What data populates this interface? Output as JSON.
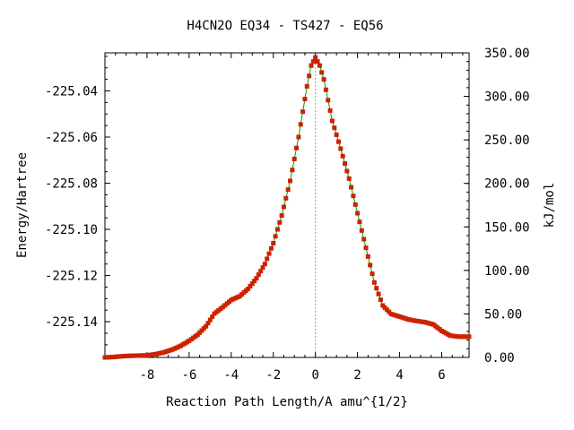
{
  "chart_data": {
    "type": "line",
    "title": "H4CN2O   EQ34 - TS427 - EQ56",
    "xlabel": "Reaction Path Length/A amu^{1/2}",
    "ylabel": "Energy/Hartree",
    "y2label": "kJ/mol",
    "xlim": [
      -10.0,
      7.3
    ],
    "ylim": [
      -225.1555,
      -225.0235
    ],
    "y2lim": [
      0,
      350
    ],
    "x_ticks": [
      "-8",
      "-6",
      "-4",
      "-2",
      "0",
      "2",
      "4",
      "6"
    ],
    "y_ticks": [
      "-225.04",
      "-225.06",
      "-225.08",
      "-225.10",
      "-225.12",
      "-225.14"
    ],
    "y2_ticks": [
      "350.00",
      "300.00",
      "250.00",
      "200.00",
      "150.00",
      "100.00",
      "50.00",
      "0.00"
    ],
    "grid": false,
    "ts_marker_x": 0,
    "colors": {
      "line": "#00a000",
      "marker": "#cc2200",
      "ts_line": "#999999"
    },
    "series": [
      {
        "points": [
          [
            -10.0,
            -225.1555
          ],
          [
            -9.6,
            -225.1553
          ],
          [
            -9.2,
            -225.155
          ],
          [
            -8.8,
            -225.1548
          ],
          [
            -8.4,
            -225.1547
          ],
          [
            -8.0,
            -225.1546
          ],
          [
            -7.6,
            -225.1541
          ],
          [
            -7.2,
            -225.1533
          ],
          [
            -6.8,
            -225.1521
          ],
          [
            -6.4,
            -225.1505
          ],
          [
            -6.0,
            -225.1483
          ],
          [
            -5.6,
            -225.1457
          ],
          [
            -5.2,
            -225.142
          ],
          [
            -4.8,
            -225.1365
          ],
          [
            -4.4,
            -225.1337
          ],
          [
            -4.0,
            -225.1306
          ],
          [
            -3.6,
            -225.129
          ],
          [
            -3.2,
            -225.1258
          ],
          [
            -2.8,
            -225.1212
          ],
          [
            -2.4,
            -225.115
          ],
          [
            -2.0,
            -225.106
          ],
          [
            -1.6,
            -225.094
          ],
          [
            -1.2,
            -225.079
          ],
          [
            -0.8,
            -225.06
          ],
          [
            -0.4,
            -225.038
          ],
          [
            -0.2,
            -225.029
          ],
          [
            0.0,
            -225.0255
          ],
          [
            0.2,
            -225.029
          ],
          [
            0.4,
            -225.035
          ],
          [
            0.6,
            -225.044
          ],
          [
            0.8,
            -225.053
          ],
          [
            1.2,
            -225.065
          ],
          [
            1.6,
            -225.078
          ],
          [
            2.0,
            -225.093
          ],
          [
            2.4,
            -225.108
          ],
          [
            2.8,
            -225.123
          ],
          [
            3.2,
            -225.133
          ],
          [
            3.6,
            -225.1367
          ],
          [
            4.0,
            -225.1378
          ],
          [
            4.4,
            -225.139
          ],
          [
            4.8,
            -225.1397
          ],
          [
            5.2,
            -225.1402
          ],
          [
            5.6,
            -225.1412
          ],
          [
            6.0,
            -225.144
          ],
          [
            6.4,
            -225.146
          ],
          [
            6.8,
            -225.1465
          ],
          [
            7.3,
            -225.1465
          ]
        ]
      }
    ]
  }
}
